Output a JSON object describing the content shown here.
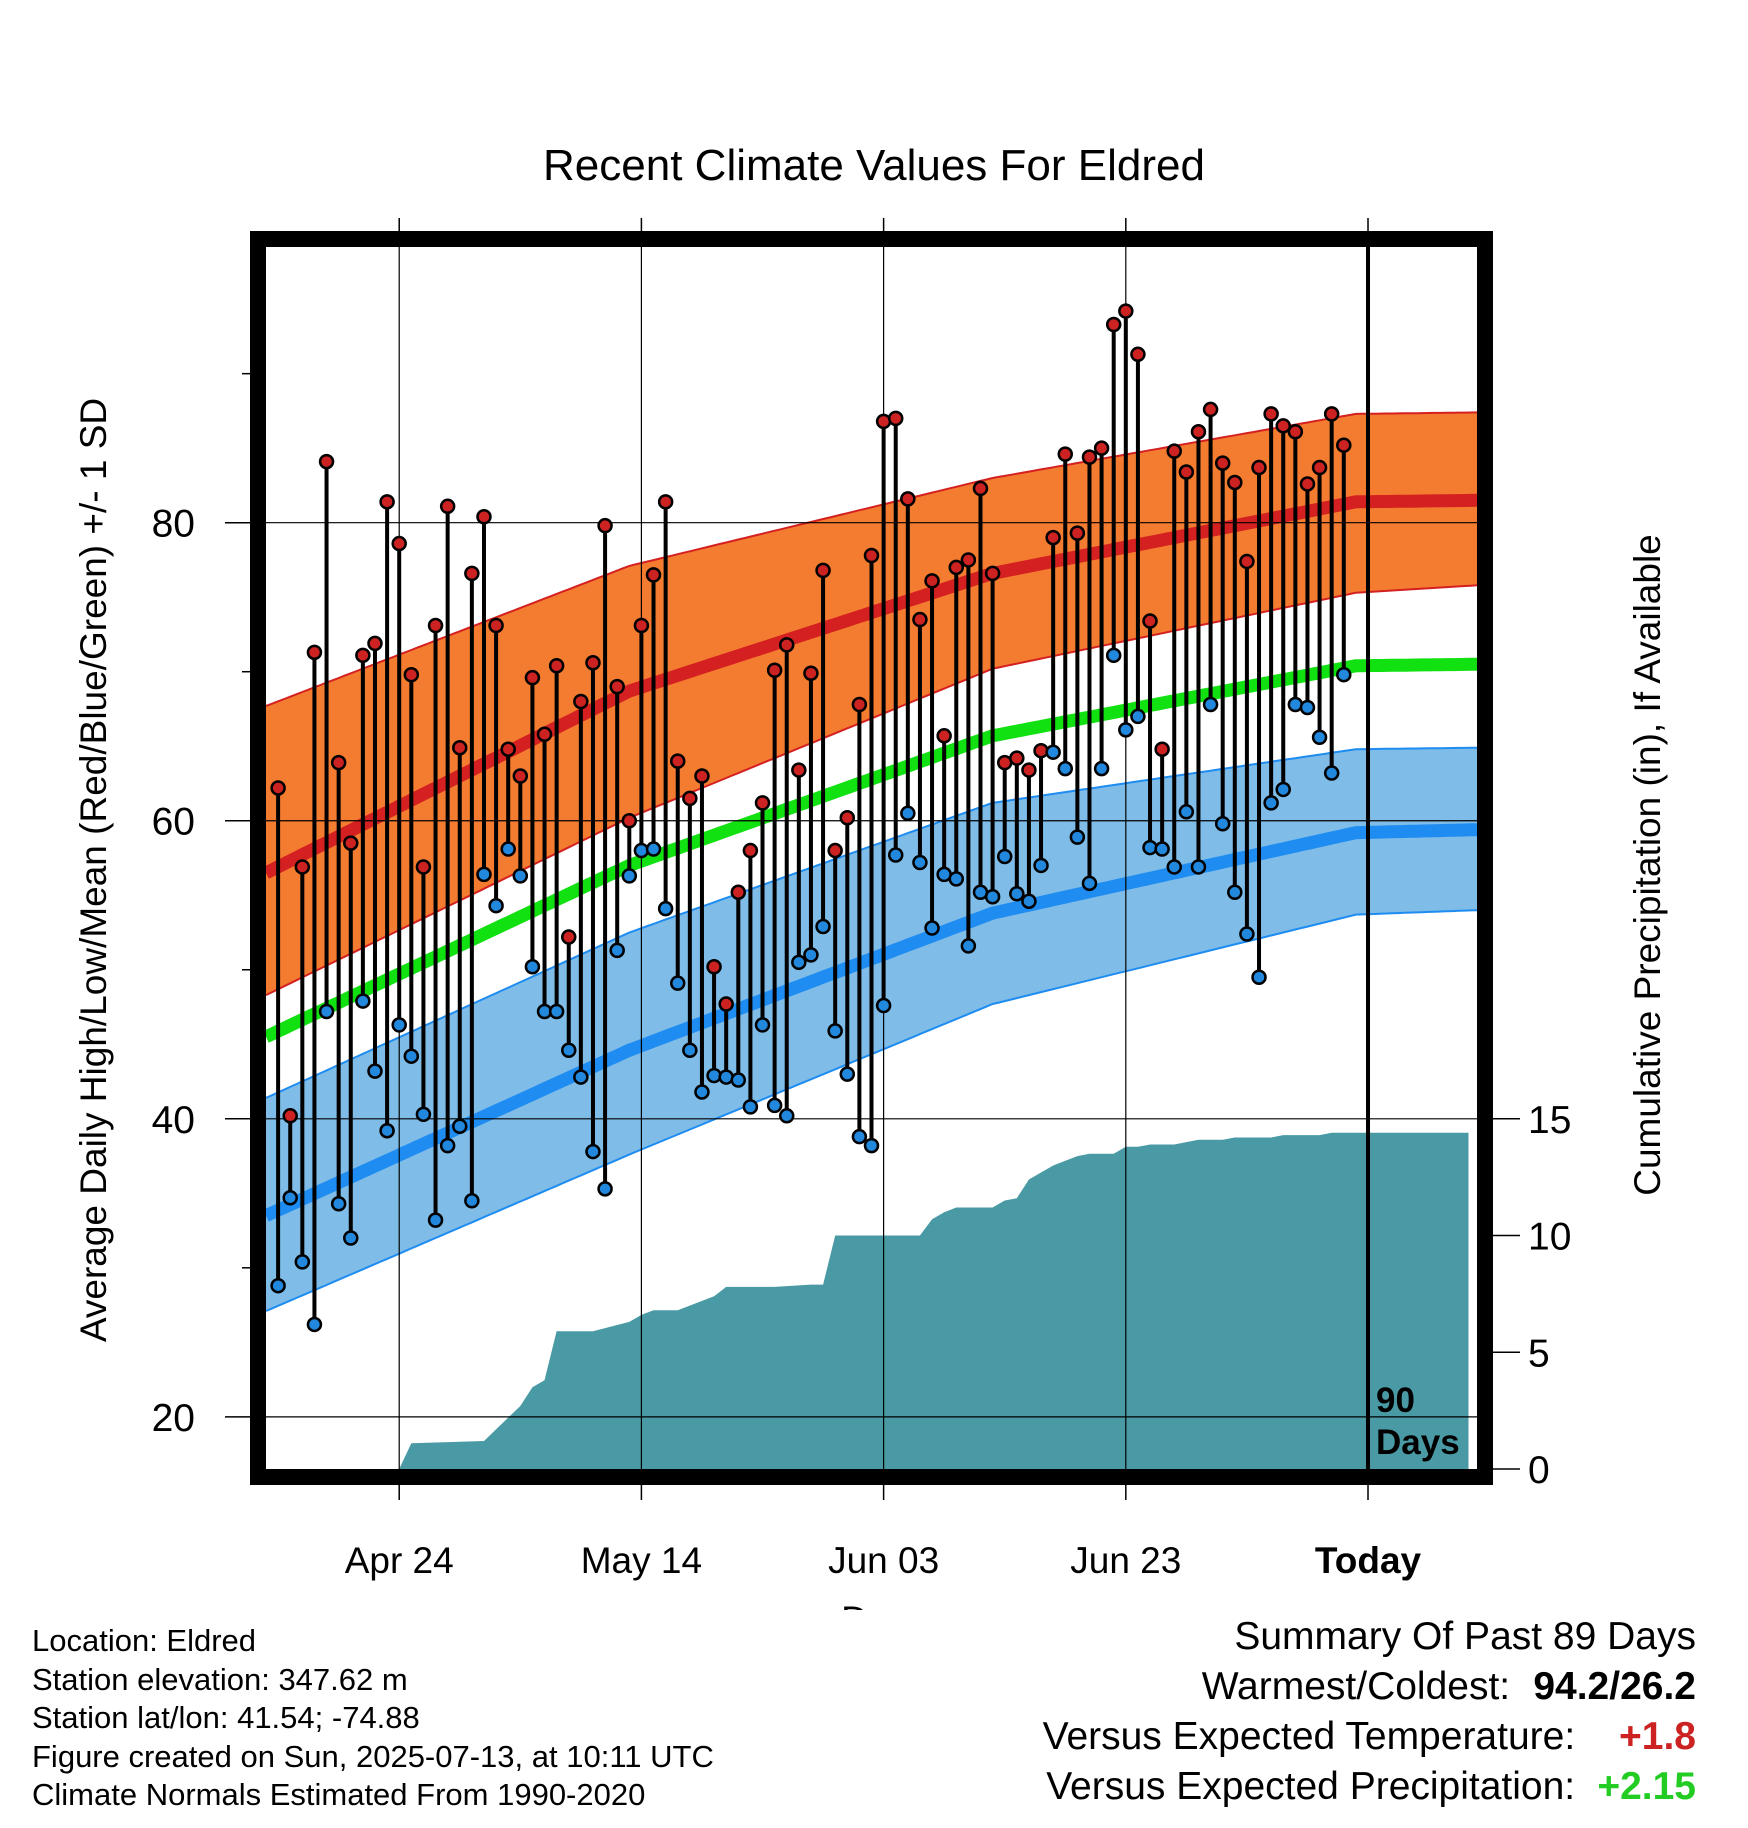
{
  "chart_data": {
    "type": "line",
    "title": "Recent Climate Values For Eldred",
    "xlabel": "Day",
    "ylabel": "Average Daily High/Low/Mean (Red/Blue/Green) +/- 1 SD",
    "y2label": "Cumulative Precipitation (in), If Available",
    "x_tick_labels": [
      "Apr 24",
      "May 14",
      "Jun 03",
      "Jun 23",
      "Today"
    ],
    "x_tick_days": [
      11,
      31,
      51,
      71,
      91
    ],
    "x_range": [
      0,
      100
    ],
    "y_ticks": [
      20,
      40,
      60,
      80
    ],
    "y_range": [
      16.5,
      98.5
    ],
    "y2_ticks": [
      0,
      5,
      10,
      15
    ],
    "window_label_line1": "90",
    "window_label_line2": "Days",
    "normal_high": {
      "day": [
        0,
        30,
        60,
        90,
        100
      ],
      "mean": [
        56.5,
        68.7,
        76.6,
        81.4,
        81.5
      ],
      "upper": [
        67.7,
        77.1,
        83.0,
        87.3,
        87.4
      ],
      "lower": [
        48.3,
        60.2,
        70.2,
        75.3,
        75.8
      ]
    },
    "normal_mean": {
      "day": [
        0,
        30,
        60,
        90,
        100
      ],
      "value": [
        45.5,
        57.0,
        65.7,
        70.4,
        70.5
      ]
    },
    "normal_low": {
      "day": [
        0,
        30,
        60,
        90,
        100
      ],
      "mean": [
        33.5,
        44.6,
        53.8,
        59.2,
        59.4
      ],
      "upper": [
        41.4,
        52.5,
        61.2,
        64.8,
        64.9
      ],
      "lower": [
        27.1,
        37.6,
        47.7,
        53.7,
        54.0
      ]
    },
    "daily_high": [
      62.2,
      40.2,
      56.9,
      71.3,
      84.1,
      63.9,
      58.5,
      71.1,
      71.9,
      81.4,
      78.6,
      69.8,
      56.9,
      73.1,
      81.1,
      64.9,
      76.6,
      80.4,
      73.1,
      64.8,
      63.0,
      69.6,
      65.8,
      70.4,
      52.2,
      68.0,
      70.6,
      79.8,
      69.0,
      60.0,
      73.1,
      76.5,
      81.4,
      64.0,
      61.5,
      63.0,
      50.2,
      47.7,
      55.2,
      58.0,
      61.2,
      70.1,
      71.8,
      63.4,
      69.9,
      76.8,
      58.0,
      60.2,
      67.8,
      77.8,
      86.8,
      87.0,
      81.6,
      73.5,
      76.1,
      65.7,
      77.0,
      77.5,
      82.3,
      76.6,
      63.9,
      64.2,
      63.4,
      64.7,
      79.0,
      84.6,
      79.3,
      84.4,
      85.0,
      93.3,
      94.2,
      91.3,
      73.4,
      64.8,
      84.8,
      83.4,
      86.1,
      87.6,
      84.0,
      82.7,
      77.4,
      83.7,
      87.3,
      86.5,
      86.1,
      82.6,
      83.7,
      87.3,
      85.2
    ],
    "daily_low": [
      28.8,
      34.7,
      30.4,
      26.2,
      47.2,
      34.3,
      32.0,
      47.9,
      43.2,
      39.2,
      46.3,
      44.2,
      40.3,
      33.2,
      38.2,
      39.5,
      34.5,
      56.4,
      54.3,
      58.1,
      56.3,
      50.2,
      47.2,
      47.2,
      44.6,
      42.8,
      37.8,
      35.3,
      51.3,
      56.3,
      58.0,
      58.1,
      54.1,
      49.1,
      44.6,
      41.8,
      42.9,
      42.8,
      42.6,
      40.8,
      46.3,
      40.9,
      40.2,
      50.5,
      51.0,
      52.9,
      45.9,
      43.0,
      38.8,
      38.2,
      47.6,
      57.7,
      60.5,
      57.2,
      52.8,
      56.4,
      56.1,
      51.6,
      55.2,
      54.9,
      57.6,
      55.1,
      54.6,
      57.0,
      64.6,
      63.5,
      58.9,
      55.8,
      63.5,
      71.1,
      66.1,
      67.0,
      58.2,
      58.1,
      56.9,
      60.6,
      56.9,
      67.8,
      59.8,
      55.2,
      52.4,
      49.5,
      61.2,
      62.1,
      67.8,
      67.6,
      65.6,
      63.2,
      69.8
    ],
    "precip_days": [
      0,
      11,
      12,
      18,
      20,
      21,
      22,
      23,
      24,
      25,
      26,
      27,
      30,
      31,
      32,
      33,
      34,
      37,
      38,
      39,
      40,
      42,
      45,
      46,
      47,
      50,
      52,
      54,
      55,
      56,
      57,
      58,
      59,
      60,
      61,
      62,
      63,
      64,
      65,
      66,
      67,
      68,
      70,
      71,
      72,
      73,
      74,
      75,
      76,
      77,
      78,
      79,
      80,
      81,
      82,
      83,
      84,
      86,
      87,
      88,
      89,
      90,
      91,
      99.3
    ],
    "precip_cumulative": [
      0,
      0,
      1.1,
      1.2,
      2.2,
      2.7,
      3.5,
      3.8,
      5.9,
      5.9,
      5.9,
      5.9,
      6.3,
      6.6,
      6.8,
      6.8,
      6.8,
      7.4,
      7.8,
      7.8,
      7.8,
      7.8,
      7.9,
      7.9,
      10.0,
      10.0,
      10.0,
      10.0,
      10.7,
      11.0,
      11.2,
      11.2,
      11.2,
      11.2,
      11.5,
      11.6,
      12.4,
      12.7,
      13.0,
      13.2,
      13.4,
      13.5,
      13.5,
      13.8,
      13.8,
      13.9,
      13.9,
      13.9,
      14.0,
      14.1,
      14.1,
      14.1,
      14.2,
      14.2,
      14.2,
      14.2,
      14.3,
      14.3,
      14.3,
      14.4,
      14.4,
      14.4,
      14.4,
      14.4
    ],
    "colors": {
      "high_band": "#f47c30",
      "high_band_edge": "#d42020",
      "high_mean": "#d42020",
      "mean_line": "#11e011",
      "low_band": "#7fbde8",
      "low_band_edge": "#1e8cf0",
      "low_mean": "#1e8cf0",
      "precip": "#4a9aa5",
      "high_point": "#cc2222",
      "low_point": "#2288dd"
    }
  },
  "footer": {
    "lines": [
      "Location: Eldred",
      "Station elevation: 347.62 m",
      "Station lat/lon: 41.54; -74.88",
      "Figure created on Sun, 2025-07-13, at 10:11 UTC",
      "Climate Normals Estimated From 1990-2020"
    ]
  },
  "summary": {
    "title": "Summary Of Past 89 Days",
    "warmest_coldest_label": "Warmest/Coldest:",
    "warmest": "94.2",
    "separator": "/",
    "coldest": "26.2",
    "temp_label": "Versus Expected Temperature:",
    "temp_value": "+1.8",
    "temp_color": "#cc2222",
    "precip_label": "Versus Expected Precipitation:",
    "precip_value": "+2.15",
    "precip_color": "#22cc22"
  }
}
